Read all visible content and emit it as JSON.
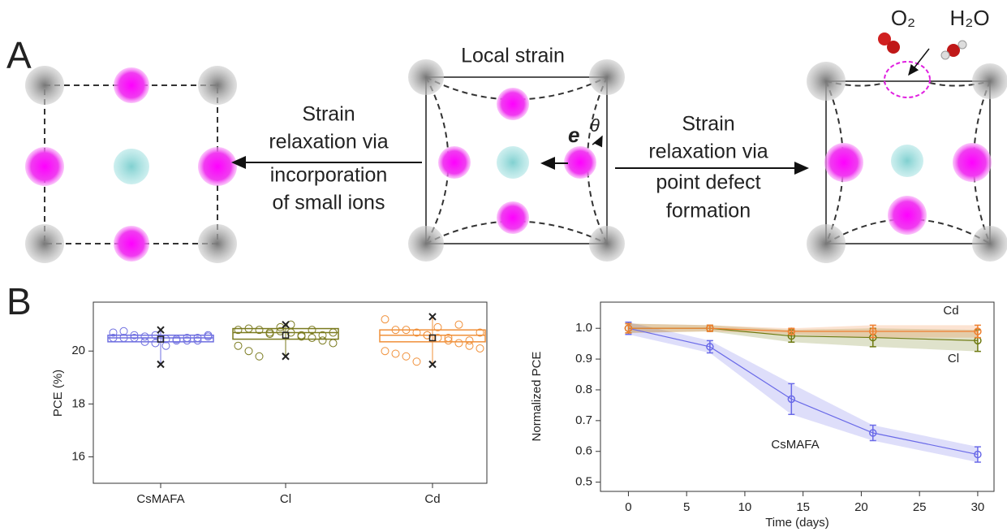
{
  "figure": {
    "panel_a": "A",
    "panel_b": "B"
  },
  "diagram": {
    "local_strain": "Local strain",
    "left_text": [
      "Strain",
      "relaxation via",
      "incorporation",
      "of small ions"
    ],
    "right_text": [
      "Strain",
      "relaxation via",
      "point defect",
      "formation"
    ],
    "e": "e",
    "theta": "θ",
    "o2": "O₂",
    "h2o": "H₂O"
  },
  "chart_data": [
    {
      "type": "box",
      "ylabel": "PCE (%)",
      "categories": [
        "CsMAFA",
        "Cl",
        "Cd"
      ],
      "colors": [
        "#6f6fe0",
        "#7a7a1e",
        "#f0903a"
      ],
      "points": [
        [
          20.5,
          20.5,
          20.5,
          20.55,
          20.6,
          20.45,
          20.4,
          20.4,
          20.5,
          20.55,
          20.7,
          20.75,
          20.6,
          20.35,
          20.3,
          20.2,
          20.45,
          20.5,
          20.4,
          20.6
        ],
        [
          20.8,
          20.85,
          20.8,
          20.7,
          20.75,
          20.7,
          20.6,
          20.5,
          20.4,
          20.3,
          20.2,
          20.0,
          19.8,
          20.65,
          20.9,
          21.0,
          20.55,
          20.8,
          20.6,
          20.7
        ],
        [
          21.2,
          20.8,
          20.8,
          20.7,
          20.6,
          20.5,
          20.4,
          20.3,
          20.2,
          20.1,
          20.0,
          19.9,
          19.8,
          19.6,
          20.6,
          20.9,
          20.5,
          21.0,
          20.4,
          20.7
        ]
      ],
      "q1": [
        20.35,
        20.45,
        20.35
      ],
      "median": [
        20.5,
        20.7,
        20.6
      ],
      "q3": [
        20.6,
        20.85,
        20.8
      ],
      "mean": [
        20.45,
        20.6,
        20.5
      ],
      "max": [
        20.8,
        21.0,
        21.3
      ],
      "min": [
        19.5,
        19.8,
        19.5
      ],
      "ylim": [
        15,
        21.85
      ],
      "yticks": [
        16,
        18,
        20
      ]
    },
    {
      "type": "line",
      "xlabel": "Time (days)",
      "ylabel": "Normalized PCE",
      "x": [
        0,
        7,
        14,
        21,
        30
      ],
      "series": [
        {
          "name": "CsMAFA",
          "color": "#6a6ae8",
          "values": [
            1.0,
            0.94,
            0.77,
            0.66,
            0.59
          ],
          "errors": [
            0.02,
            0.02,
            0.05,
            0.025,
            0.025
          ]
        },
        {
          "name": "Cl",
          "color": "#6e7a10",
          "values": [
            1.0,
            1.0,
            0.975,
            0.97,
            0.96
          ],
          "errors": [
            0.015,
            0.01,
            0.02,
            0.03,
            0.035
          ]
        },
        {
          "name": "Cd",
          "color": "#f08030",
          "values": [
            1.0,
            1.0,
            0.99,
            0.99,
            0.99
          ],
          "errors": [
            0.015,
            0.01,
            0.01,
            0.02,
            0.02
          ]
        }
      ],
      "xlim": [
        -2.4,
        31.4
      ],
      "xticks": [
        0,
        5,
        10,
        15,
        20,
        25,
        30
      ],
      "ylim": [
        0.47,
        1.085
      ],
      "yticks": [
        0.5,
        0.6,
        0.7,
        0.8,
        0.9,
        {
          "value": 1,
          "label": "1.0"
        }
      ]
    }
  ]
}
